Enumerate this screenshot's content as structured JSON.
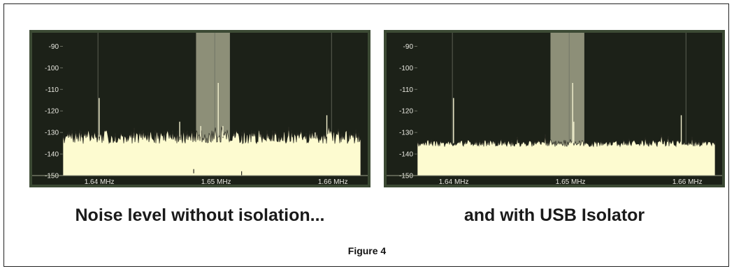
{
  "figure_label": "Figure 4",
  "captions": [
    "Noise level without isolation...",
    "and with USB Isolator"
  ],
  "colors": {
    "plot_bg": "#1c2118",
    "outer_frame": "#3c4a34",
    "noise_fill": "#fdfbd0",
    "noise_edge": "#2a2a22",
    "band": "#8d8f78",
    "grid": "#6b6f62",
    "tick_text": "#e8e8e0"
  },
  "chart_data": [
    {
      "type": "area",
      "title": "",
      "xlabel": "",
      "ylabel": "",
      "xlim": [
        1.637,
        1.6625
      ],
      "ylim": [
        -150,
        -85
      ],
      "y_ticks": [
        "-90",
        "-100",
        "-110",
        "-120",
        "-130",
        "-140",
        "-150"
      ],
      "y_tick_values": [
        -90,
        -100,
        -110,
        -120,
        -130,
        -140,
        -150
      ],
      "x_ticks": [
        "1.64 MHz",
        "1.65 MHz",
        "1.66 MHz"
      ],
      "x_tick_values": [
        1.64,
        1.65,
        1.66
      ],
      "highlight_band": [
        1.6484,
        1.6513
      ],
      "noise_floor_dbm": -132,
      "noise_jitter_db": 3.2,
      "noise_seed": 7,
      "spikes": [
        {
          "x": 1.6401,
          "y": -114
        },
        {
          "x": 1.647,
          "y": -125
        },
        {
          "x": 1.6488,
          "y": -127
        },
        {
          "x": 1.6503,
          "y": -107
        },
        {
          "x": 1.6507,
          "y": -127
        },
        {
          "x": 1.6586,
          "y": -130
        },
        {
          "x": 1.6596,
          "y": -122
        }
      ],
      "dips": [
        {
          "x": 1.6482,
          "y": -147
        },
        {
          "x": 1.6523,
          "y": -148
        }
      ]
    },
    {
      "type": "area",
      "title": "",
      "xlabel": "",
      "ylabel": "",
      "xlim": [
        1.637,
        1.6625
      ],
      "ylim": [
        -150,
        -85
      ],
      "y_ticks": [
        "-90",
        "-100",
        "-110",
        "-120",
        "-130",
        "-140",
        "-150"
      ],
      "y_tick_values": [
        -90,
        -100,
        -110,
        -120,
        -130,
        -140,
        -150
      ],
      "x_ticks": [
        "1.64 MHz",
        "1.65 MHz",
        "1.66 MHz"
      ],
      "x_tick_values": [
        1.64,
        1.65,
        1.66
      ],
      "highlight_band": [
        1.6484,
        1.6513
      ],
      "noise_floor_dbm": -135,
      "noise_jitter_db": 1.6,
      "noise_seed": 19,
      "spikes": [
        {
          "x": 1.6401,
          "y": -114
        },
        {
          "x": 1.6503,
          "y": -107
        },
        {
          "x": 1.6504,
          "y": -125
        },
        {
          "x": 1.6596,
          "y": -122
        }
      ],
      "dips": []
    }
  ]
}
